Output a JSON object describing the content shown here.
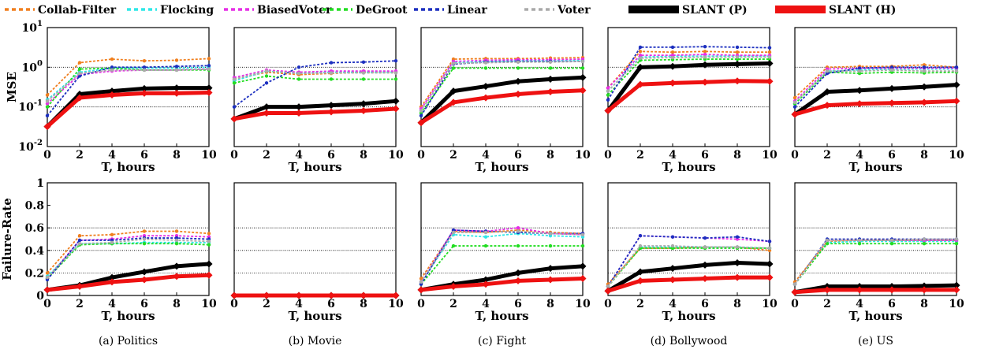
{
  "legend": [
    {
      "name": "Collab-Filter",
      "color": "#f07f1e",
      "dash": true
    },
    {
      "name": "Flocking",
      "color": "#2ee8e8",
      "dash": true
    },
    {
      "name": "BiasedVoter",
      "color": "#e62ee6",
      "dash": true
    },
    {
      "name": "DeGroot",
      "color": "#22dd22",
      "dash": true
    },
    {
      "name": "Linear",
      "color": "#1c2fbf",
      "dash": true
    },
    {
      "name": "Voter",
      "color": "#aaaaaa",
      "dash": true
    },
    {
      "name": "SLANT (P)",
      "color": "#000000",
      "dash": false
    },
    {
      "name": "SLANT (H)",
      "color": "#ee1111",
      "dash": false
    }
  ],
  "captions": [
    "(a) Politics",
    "(b) Movie",
    "(c) Fight",
    "(d) Bollywood",
    "(e) US"
  ],
  "chart_data": {
    "type": "line",
    "x": [
      0,
      2,
      4,
      6,
      8,
      10
    ],
    "xlabel": "T, hours",
    "rows": [
      {
        "ylabel": "MSE",
        "scale": "log",
        "ylim": [
          0.01,
          10
        ],
        "yticks": [
          {
            "v": 0.01,
            "base": "10",
            "exp": "-2"
          },
          {
            "v": 0.1,
            "base": "10",
            "exp": "-1"
          },
          {
            "v": 1,
            "base": "10",
            "exp": "0"
          },
          {
            "v": 10,
            "base": "10",
            "exp": "1"
          }
        ],
        "gridlines": [
          0.1,
          1
        ]
      },
      {
        "ylabel": "Failure-Rate",
        "scale": "linear",
        "ylim": [
          0,
          1
        ],
        "yticks": [
          {
            "v": 0,
            "label": "0"
          },
          {
            "v": 0.2,
            "label": "0.2"
          },
          {
            "v": 0.4,
            "label": "0.4"
          },
          {
            "v": 0.6,
            "label": "0.6"
          },
          {
            "v": 0.8,
            "label": "0.8"
          },
          {
            "v": 1,
            "label": "1"
          }
        ],
        "gridlines": [
          0.2,
          0.4,
          0.6
        ]
      }
    ],
    "panels": [
      {
        "dataset": "Politics",
        "mse": {
          "Collab-Filter": [
            0.2,
            1.3,
            1.6,
            1.45,
            1.5,
            1.65
          ],
          "Flocking": [
            0.15,
            0.75,
            0.95,
            0.95,
            0.95,
            1.0
          ],
          "BiasedVoter": [
            0.12,
            0.65,
            0.8,
            0.85,
            0.85,
            0.9
          ],
          "DeGroot": [
            0.1,
            0.9,
            0.95,
            0.85,
            0.85,
            0.85
          ],
          "Linear": [
            0.06,
            0.6,
            1.0,
            1.0,
            1.05,
            1.1
          ],
          "Voter": [
            0.14,
            0.7,
            0.85,
            0.85,
            0.85,
            0.9
          ],
          "SLANT (P)": [
            0.032,
            0.21,
            0.25,
            0.29,
            0.3,
            0.3
          ],
          "SLANT (H)": [
            0.032,
            0.17,
            0.2,
            0.22,
            0.22,
            0.23
          ]
        },
        "fail": {
          "Collab-Filter": [
            0.2,
            0.53,
            0.54,
            0.57,
            0.57,
            0.55
          ],
          "Flocking": [
            0.17,
            0.46,
            0.46,
            0.47,
            0.47,
            0.47
          ],
          "BiasedVoter": [
            0.15,
            0.49,
            0.5,
            0.53,
            0.53,
            0.52
          ],
          "DeGroot": [
            0.15,
            0.45,
            0.46,
            0.46,
            0.46,
            0.45
          ],
          "Linear": [
            0.14,
            0.49,
            0.49,
            0.51,
            0.51,
            0.5
          ],
          "Voter": [
            0.16,
            0.46,
            0.47,
            0.5,
            0.49,
            0.48
          ],
          "SLANT (P)": [
            0.05,
            0.09,
            0.16,
            0.21,
            0.26,
            0.28
          ],
          "SLANT (H)": [
            0.05,
            0.08,
            0.12,
            0.14,
            0.17,
            0.18
          ]
        }
      },
      {
        "dataset": "Movie",
        "mse": {
          "Collab-Filter": [
            0.5,
            0.75,
            0.65,
            0.7,
            0.75,
            0.75
          ],
          "Flocking": [
            0.45,
            0.8,
            0.7,
            0.75,
            0.75,
            0.75
          ],
          "BiasedVoter": [
            0.55,
            0.85,
            0.75,
            0.8,
            0.8,
            0.8
          ],
          "DeGroot": [
            0.4,
            0.6,
            0.5,
            0.5,
            0.5,
            0.5
          ],
          "Linear": [
            0.1,
            0.4,
            1.0,
            1.3,
            1.35,
            1.45
          ],
          "Voter": [
            0.5,
            0.8,
            0.7,
            0.72,
            0.72,
            0.72
          ],
          "SLANT (P)": [
            0.05,
            0.1,
            0.1,
            0.11,
            0.12,
            0.14
          ],
          "SLANT (H)": [
            0.05,
            0.07,
            0.07,
            0.075,
            0.08,
            0.09
          ]
        },
        "fail": {
          "Collab-Filter": [
            0,
            0,
            0,
            0,
            0,
            0
          ],
          "Flocking": [
            0,
            0,
            0,
            0,
            0,
            0
          ],
          "BiasedVoter": [
            0,
            0,
            0,
            0,
            0,
            0
          ],
          "DeGroot": [
            0,
            0,
            0,
            0,
            0,
            0
          ],
          "Linear": [
            0,
            0,
            0,
            0,
            0,
            0
          ],
          "Voter": [
            0,
            0,
            0,
            0,
            0,
            0
          ],
          "SLANT (P)": [
            0,
            0,
            0,
            0,
            0,
            0
          ],
          "SLANT (H)": [
            0,
            0,
            0,
            0,
            0,
            0
          ]
        }
      },
      {
        "dataset": "Fight",
        "mse": {
          "Collab-Filter": [
            0.1,
            1.6,
            1.65,
            1.65,
            1.7,
            1.75
          ],
          "Flocking": [
            0.08,
            1.3,
            1.4,
            1.45,
            1.45,
            1.5
          ],
          "BiasedVoter": [
            0.09,
            1.4,
            1.5,
            1.55,
            1.55,
            1.6
          ],
          "DeGroot": [
            0.07,
            0.95,
            0.95,
            0.95,
            0.95,
            0.95
          ],
          "Linear": [
            0.06,
            1.2,
            1.35,
            1.4,
            1.4,
            1.4
          ],
          "Voter": [
            0.08,
            1.25,
            1.3,
            1.35,
            1.35,
            1.4
          ],
          "SLANT (P)": [
            0.04,
            0.25,
            0.33,
            0.44,
            0.5,
            0.55
          ],
          "SLANT (H)": [
            0.04,
            0.13,
            0.17,
            0.21,
            0.24,
            0.26
          ]
        },
        "fail": {
          "Collab-Filter": [
            0.15,
            0.57,
            0.56,
            0.58,
            0.56,
            0.55
          ],
          "Flocking": [
            0.12,
            0.54,
            0.52,
            0.55,
            0.53,
            0.52
          ],
          "BiasedVoter": [
            0.12,
            0.58,
            0.57,
            0.6,
            0.55,
            0.54
          ],
          "DeGroot": [
            0.1,
            0.44,
            0.44,
            0.44,
            0.44,
            0.44
          ],
          "Linear": [
            0.1,
            0.58,
            0.57,
            0.56,
            0.55,
            0.55
          ],
          "Voter": [
            0.12,
            0.56,
            0.56,
            0.57,
            0.55,
            0.54
          ],
          "SLANT (P)": [
            0.05,
            0.1,
            0.14,
            0.2,
            0.24,
            0.26
          ],
          "SLANT (H)": [
            0.05,
            0.08,
            0.1,
            0.13,
            0.14,
            0.15
          ]
        }
      },
      {
        "dataset": "Bollywood",
        "mse": {
          "Collab-Filter": [
            0.3,
            2.5,
            2.4,
            2.5,
            2.4,
            2.4
          ],
          "Flocking": [
            0.25,
            1.8,
            1.9,
            1.9,
            1.9,
            1.9
          ],
          "BiasedVoter": [
            0.3,
            2.0,
            2.0,
            2.1,
            2.0,
            2.0
          ],
          "DeGroot": [
            0.2,
            1.5,
            1.55,
            1.6,
            1.6,
            1.6
          ],
          "Linear": [
            0.15,
            3.2,
            3.2,
            3.3,
            3.2,
            3.1
          ],
          "Voter": [
            0.25,
            1.7,
            1.75,
            1.8,
            1.8,
            1.8
          ],
          "SLANT (P)": [
            0.08,
            1.0,
            1.05,
            1.15,
            1.2,
            1.25
          ],
          "SLANT (H)": [
            0.08,
            0.37,
            0.4,
            0.42,
            0.45,
            0.44
          ]
        },
        "fail": {
          "Collab-Filter": [
            0.1,
            0.42,
            0.42,
            0.43,
            0.43,
            0.4
          ],
          "Flocking": [
            0.08,
            0.43,
            0.43,
            0.43,
            0.43,
            0.42
          ],
          "BiasedVoter": [
            0.08,
            0.53,
            0.52,
            0.51,
            0.5,
            0.48
          ],
          "DeGroot": [
            0.08,
            0.42,
            0.42,
            0.42,
            0.42,
            0.42
          ],
          "Linear": [
            0.08,
            0.53,
            0.52,
            0.51,
            0.52,
            0.48
          ],
          "Voter": [
            0.08,
            0.44,
            0.44,
            0.43,
            0.43,
            0.42
          ],
          "SLANT (P)": [
            0.04,
            0.21,
            0.24,
            0.27,
            0.29,
            0.28
          ],
          "SLANT (H)": [
            0.04,
            0.13,
            0.14,
            0.15,
            0.16,
            0.16
          ]
        }
      },
      {
        "dataset": "US",
        "mse": {
          "Collab-Filter": [
            0.17,
            1.0,
            1.05,
            1.05,
            1.15,
            1.0
          ],
          "Flocking": [
            0.12,
            0.8,
            0.85,
            0.9,
            0.9,
            0.9
          ],
          "BiasedVoter": [
            0.14,
            0.9,
            0.95,
            0.95,
            0.95,
            0.95
          ],
          "DeGroot": [
            0.12,
            0.75,
            0.7,
            0.75,
            0.72,
            0.75
          ],
          "Linear": [
            0.1,
            0.7,
            0.95,
            1.0,
            1.0,
            1.0
          ],
          "Voter": [
            0.13,
            0.8,
            0.8,
            0.85,
            0.8,
            0.8
          ],
          "SLANT (P)": [
            0.065,
            0.24,
            0.26,
            0.29,
            0.32,
            0.36
          ],
          "SLANT (H)": [
            0.065,
            0.11,
            0.12,
            0.125,
            0.13,
            0.14
          ]
        },
        "fail": {
          "Collab-Filter": [
            0.12,
            0.48,
            0.49,
            0.49,
            0.49,
            0.49
          ],
          "Flocking": [
            0.1,
            0.47,
            0.48,
            0.48,
            0.48,
            0.48
          ],
          "BiasedVoter": [
            0.1,
            0.49,
            0.49,
            0.49,
            0.49,
            0.49
          ],
          "DeGroot": [
            0.1,
            0.46,
            0.46,
            0.46,
            0.46,
            0.46
          ],
          "Linear": [
            0.1,
            0.5,
            0.5,
            0.5,
            0.5,
            0.5
          ],
          "Voter": [
            0.1,
            0.49,
            0.49,
            0.49,
            0.5,
            0.5
          ],
          "SLANT (P)": [
            0.03,
            0.08,
            0.08,
            0.08,
            0.085,
            0.09
          ],
          "SLANT (H)": [
            0.03,
            0.05,
            0.05,
            0.05,
            0.05,
            0.05
          ]
        }
      }
    ]
  }
}
